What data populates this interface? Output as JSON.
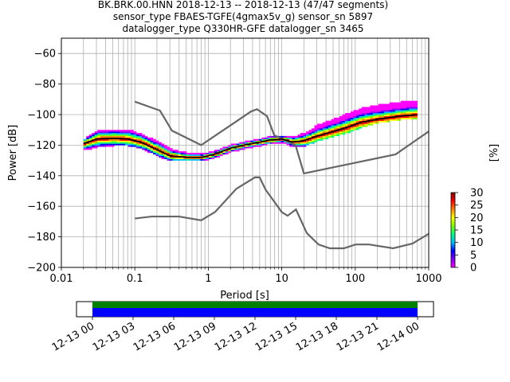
{
  "title_lines": [
    "BK.BRK.00.HNN   2018-12-13 -- 2018-12-13  (47/47 segments)",
    "sensor_type FBAES-TGFE(4gmax5v_g) sensor_sn 5897",
    "datalogger_type Q330HR-GFE datalogger_sn 3465"
  ],
  "chart_data": {
    "type": "heatmap",
    "xlabel": "Period [s]",
    "ylabel": "Power [dB]",
    "x_scale": "log",
    "xlim": [
      0.01,
      1000
    ],
    "ylim": [
      -200,
      -50
    ],
    "x_ticks": [
      0.01,
      0.1,
      1,
      10,
      100,
      1000
    ],
    "x_tick_labels": [
      "0.01",
      "0.1",
      "1",
      "10",
      "100",
      "1000"
    ],
    "y_ticks": [
      -200,
      -180,
      -160,
      -140,
      -120,
      -100,
      -80,
      -60
    ],
    "y_tick_labels": [
      "−200",
      "−180",
      "−160",
      "−140",
      "−120",
      "−100",
      "−80",
      "−60"
    ],
    "grid": true,
    "colorbar": {
      "label": "[%]",
      "range": [
        0,
        30
      ],
      "ticks": [
        0,
        5,
        10,
        15,
        20,
        25,
        30
      ],
      "tick_labels": [
        "0",
        "5",
        "10",
        "15",
        "20",
        "25",
        "30"
      ],
      "colormap": [
        "#ff00ff",
        "#7f00ff",
        "#0000ff",
        "#00bfff",
        "#00ff80",
        "#80ff00",
        "#ffff00",
        "#ff8000",
        "#ff0000",
        "#800000"
      ]
    },
    "noise_models": [
      {
        "name": "NHNM",
        "color": "#666666",
        "points": [
          [
            0.1,
            -91.5
          ],
          [
            0.22,
            -97.4
          ],
          [
            0.32,
            -110.5
          ],
          [
            0.8,
            -120
          ],
          [
            3.8,
            -98
          ],
          [
            4.6,
            -96.5
          ],
          [
            6.3,
            -101
          ],
          [
            7.9,
            -113.5
          ],
          [
            15.4,
            -120
          ],
          [
            20,
            -138.5
          ],
          [
            354.8,
            -126
          ],
          [
            1000,
            -111
          ]
        ]
      },
      {
        "name": "NLNM",
        "color": "#666666",
        "points": [
          [
            0.1,
            -168
          ],
          [
            0.17,
            -166.7
          ],
          [
            0.4,
            -166.7
          ],
          [
            0.8,
            -169.2
          ],
          [
            1.24,
            -163.7
          ],
          [
            2.4,
            -148.6
          ],
          [
            4.3,
            -141.1
          ],
          [
            5.0,
            -141.1
          ],
          [
            6.0,
            -149
          ],
          [
            10,
            -163.8
          ],
          [
            12,
            -166.2
          ],
          [
            15.6,
            -162.1
          ],
          [
            21.9,
            -177.5
          ],
          [
            31.6,
            -185
          ],
          [
            45,
            -187.5
          ],
          [
            70,
            -187.5
          ],
          [
            101,
            -185
          ],
          [
            154,
            -185
          ],
          [
            328,
            -187.5
          ],
          [
            600,
            -184.4
          ],
          [
            1000,
            -178
          ]
        ]
      }
    ],
    "mean_curve": {
      "color": "#000000",
      "points": [
        [
          0.02,
          -119
        ],
        [
          0.03,
          -116
        ],
        [
          0.05,
          -115.5
        ],
        [
          0.08,
          -116
        ],
        [
          0.12,
          -118
        ],
        [
          0.2,
          -123
        ],
        [
          0.3,
          -127
        ],
        [
          0.5,
          -128
        ],
        [
          0.8,
          -128
        ],
        [
          1.2,
          -126
        ],
        [
          2,
          -122
        ],
        [
          3,
          -120
        ],
        [
          5,
          -118
        ],
        [
          7,
          -116.5
        ],
        [
          10,
          -116
        ],
        [
          14,
          -118
        ],
        [
          20,
          -117
        ],
        [
          30,
          -114
        ],
        [
          50,
          -111
        ],
        [
          80,
          -108
        ],
        [
          120,
          -105
        ],
        [
          200,
          -103
        ],
        [
          400,
          -101
        ],
        [
          700,
          -100
        ]
      ]
    },
    "spread_top": {
      "points": [
        [
          0.02,
          -116
        ],
        [
          0.03,
          -111
        ],
        [
          0.05,
          -110
        ],
        [
          0.08,
          -110
        ],
        [
          0.12,
          -113
        ],
        [
          0.2,
          -118
        ],
        [
          0.3,
          -123
        ],
        [
          0.5,
          -125
        ],
        [
          0.8,
          -126
        ],
        [
          1.2,
          -124
        ],
        [
          2,
          -120
        ],
        [
          3,
          -118
        ],
        [
          5,
          -116
        ],
        [
          7,
          -114
        ],
        [
          10,
          -114
        ],
        [
          14,
          -115
        ],
        [
          20,
          -112
        ],
        [
          30,
          -107
        ],
        [
          50,
          -103
        ],
        [
          80,
          -99
        ],
        [
          120,
          -96
        ],
        [
          200,
          -94
        ],
        [
          400,
          -92
        ],
        [
          700,
          -91
        ]
      ]
    },
    "spread_bottom": {
      "points": [
        [
          0.02,
          -123
        ],
        [
          0.03,
          -121
        ],
        [
          0.05,
          -120
        ],
        [
          0.08,
          -120
        ],
        [
          0.12,
          -122
        ],
        [
          0.2,
          -127
        ],
        [
          0.3,
          -130
        ],
        [
          0.5,
          -130
        ],
        [
          0.8,
          -130
        ],
        [
          1.2,
          -128
        ],
        [
          2,
          -124
        ],
        [
          3,
          -122
        ],
        [
          5,
          -120
        ],
        [
          7,
          -118.5
        ],
        [
          10,
          -118
        ],
        [
          14,
          -121
        ],
        [
          20,
          -120
        ],
        [
          30,
          -117
        ],
        [
          50,
          -114
        ],
        [
          80,
          -111
        ],
        [
          120,
          -108
        ],
        [
          200,
          -105
        ],
        [
          400,
          -103
        ],
        [
          700,
          -102
        ]
      ]
    }
  },
  "timeline": {
    "tick_labels": [
      "12-13 00",
      "12-13 03",
      "12-13 06",
      "12-13 09",
      "12-13 12",
      "12-13 15",
      "12-13 18",
      "12-13 21",
      "12-14 00"
    ],
    "coverage_color": "#008000",
    "data_color": "#0000ff"
  }
}
